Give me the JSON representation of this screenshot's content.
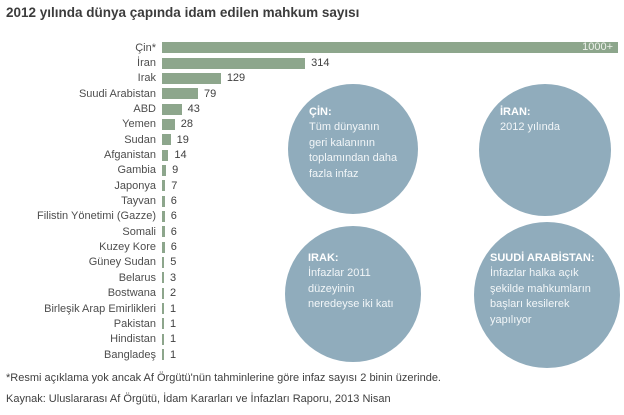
{
  "title": "2012 yılında dünya çapında idam edilen mahkum sayısı",
  "footnote": "*Resmi açıklama yok ancak Af Örgütü'nün tahminlerine göre infaz sayısı 2 binin üzerinde.",
  "source": "Kaynak: Uluslararası Af Örgütü, İdam Kararları ve İnfazları Raporu, 2013 Nisan",
  "colors": {
    "bar": "#8da68c",
    "bar_label_inside": "#eef1ec",
    "bubble": "#90acbc",
    "label_text": "#4d4d4d",
    "value_text": "#404040",
    "title_text": "#3c3c3c"
  },
  "chart_data": {
    "type": "bar",
    "orientation": "horizontal",
    "title": "2012 yılında dünya çapında idam edilen mahkum sayısı",
    "xlabel": "",
    "ylabel": "",
    "xlim": [
      0,
      1000
    ],
    "grid": false,
    "legend": false,
    "rows": [
      {
        "category": "Çin*",
        "value": 1000,
        "display": "1000+",
        "label_inside": true
      },
      {
        "category": "İran",
        "value": 314,
        "display": "314"
      },
      {
        "category": "Irak",
        "value": 129,
        "display": "129"
      },
      {
        "category": "Suudi Arabistan",
        "value": 79,
        "display": "79"
      },
      {
        "category": "ABD",
        "value": 43,
        "display": "43"
      },
      {
        "category": "Yemen",
        "value": 28,
        "display": "28"
      },
      {
        "category": "Sudan",
        "value": 19,
        "display": "19"
      },
      {
        "category": "Afganistan",
        "value": 14,
        "display": "14"
      },
      {
        "category": "Gambia",
        "value": 9,
        "display": "9"
      },
      {
        "category": "Japonya",
        "value": 7,
        "display": "7"
      },
      {
        "category": "Tayvan",
        "value": 6,
        "display": "6"
      },
      {
        "category": "Filistin Yönetimi (Gazze)",
        "value": 6,
        "display": "6"
      },
      {
        "category": "Somali",
        "value": 6,
        "display": "6"
      },
      {
        "category": "Kuzey Kore",
        "value": 6,
        "display": "6"
      },
      {
        "category": "Güney Sudan",
        "value": 5,
        "display": "5"
      },
      {
        "category": "Belarus",
        "value": 3,
        "display": "3"
      },
      {
        "category": "Bostwana",
        "value": 2,
        "display": "2"
      },
      {
        "category": "Birleşik Arap Emirlikleri",
        "value": 1,
        "display": "1"
      },
      {
        "category": "Pakistan",
        "value": 1,
        "display": "1"
      },
      {
        "category": "Hindistan",
        "value": 1,
        "display": "1"
      },
      {
        "category": "Bangladeş",
        "value": 1,
        "display": "1"
      }
    ]
  },
  "bubbles": [
    {
      "heading": "ÇİN:",
      "lines": [
        "Tüm dünyanın",
        "geri kalanının",
        "toplamından daha",
        "fazla infaz"
      ]
    },
    {
      "heading": "İRAN:",
      "lines": [
        "2012 yılında"
      ]
    },
    {
      "heading": "IRAK:",
      "lines": [
        "İnfazlar 2011",
        "düzeyinin",
        "neredeyse iki katı"
      ]
    },
    {
      "heading": "SUUDİ ARABİSTAN:",
      "lines": [
        "İnfazlar halka açık",
        "şekilde mahkumların",
        "başları kesilerek",
        "yapılıyor"
      ]
    }
  ]
}
